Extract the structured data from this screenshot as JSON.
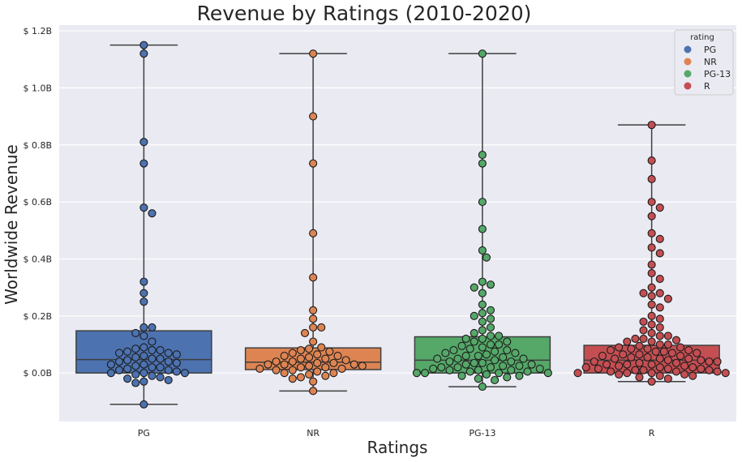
{
  "chart_data": {
    "type": "box",
    "title": "Revenue by Ratings (2010-2020)",
    "xlabel": "Ratings",
    "ylabel": "Worldwide Revenue",
    "ylim": [
      -0.17,
      1.22
    ],
    "yticks": [
      0.0,
      0.2,
      0.4,
      0.6,
      0.8,
      1.0,
      1.2
    ],
    "ytick_labels": [
      "$ 0.0B",
      "$ 0.2B",
      "$ 0.4B",
      "$ 0.6B",
      "$ 0.8B",
      "$ 1.0B",
      "$ 1.2B"
    ],
    "categories": [
      "PG",
      "NR",
      "PG-13",
      "R"
    ],
    "grid": true,
    "legend": {
      "title": "rating",
      "position": "top-right"
    },
    "colors": [
      "#4c72b0",
      "#dd8452",
      "#55a868",
      "#c44e52"
    ],
    "series": [
      {
        "name": "PG",
        "box": {
          "q1": 0.0,
          "median": 0.047,
          "q3": 0.148,
          "whisker_low": -0.11,
          "whisker_high": 1.15
        },
        "points": [
          1.15,
          1.12,
          0.81,
          0.735,
          0.58,
          0.56,
          0.32,
          0.28,
          0.25,
          0.16,
          0.16,
          0.14,
          0.13,
          0.11,
          0.09,
          0.085,
          0.08,
          0.08,
          0.075,
          0.07,
          0.07,
          0.065,
          0.06,
          0.055,
          0.05,
          0.05,
          0.045,
          0.04,
          0.04,
          0.035,
          0.03,
          0.03,
          0.025,
          0.02,
          0.02,
          0.015,
          0.01,
          0.01,
          0.005,
          0.0,
          0.0,
          0.0,
          -0.005,
          -0.01,
          -0.015,
          -0.02,
          -0.025,
          -0.03,
          -0.035,
          -0.11
        ]
      },
      {
        "name": "NR",
        "box": {
          "q1": 0.012,
          "median": 0.038,
          "q3": 0.088,
          "whisker_low": -0.063,
          "whisker_high": 1.12
        },
        "points": [
          1.12,
          0.9,
          0.735,
          0.49,
          0.335,
          0.22,
          0.19,
          0.16,
          0.16,
          0.14,
          0.11,
          0.09,
          0.085,
          0.08,
          0.075,
          0.07,
          0.065,
          0.06,
          0.06,
          0.055,
          0.05,
          0.05,
          0.045,
          0.04,
          0.04,
          0.035,
          0.035,
          0.03,
          0.03,
          0.03,
          0.025,
          0.025,
          0.02,
          0.02,
          0.015,
          0.015,
          0.01,
          0.01,
          0.005,
          0.0,
          0.0,
          -0.005,
          -0.01,
          -0.015,
          -0.02,
          -0.03,
          -0.063
        ]
      },
      {
        "name": "PG-13",
        "box": {
          "q1": 0.0,
          "median": 0.045,
          "q3": 0.127,
          "whisker_low": -0.048,
          "whisker_high": 1.12
        },
        "points": [
          1.12,
          0.765,
          0.735,
          0.6,
          0.505,
          0.43,
          0.405,
          0.32,
          0.31,
          0.3,
          0.28,
          0.24,
          0.22,
          0.21,
          0.2,
          0.19,
          0.18,
          0.16,
          0.15,
          0.14,
          0.13,
          0.13,
          0.12,
          0.12,
          0.11,
          0.11,
          0.1,
          0.1,
          0.095,
          0.09,
          0.085,
          0.08,
          0.08,
          0.075,
          0.07,
          0.07,
          0.065,
          0.06,
          0.06,
          0.055,
          0.05,
          0.05,
          0.05,
          0.045,
          0.04,
          0.04,
          0.035,
          0.035,
          0.03,
          0.03,
          0.025,
          0.025,
          0.02,
          0.02,
          0.02,
          0.015,
          0.015,
          0.01,
          0.01,
          0.01,
          0.005,
          0.005,
          0.0,
          0.0,
          0.0,
          0.0,
          -0.005,
          -0.01,
          -0.01,
          -0.015,
          -0.02,
          -0.025,
          -0.048
        ]
      },
      {
        "name": "R",
        "box": {
          "q1": 0.0,
          "median": 0.045,
          "q3": 0.097,
          "whisker_low": -0.03,
          "whisker_high": 0.87
        },
        "points": [
          0.87,
          0.745,
          0.68,
          0.6,
          0.58,
          0.55,
          0.49,
          0.47,
          0.44,
          0.42,
          0.38,
          0.35,
          0.33,
          0.3,
          0.28,
          0.28,
          0.27,
          0.26,
          0.24,
          0.23,
          0.2,
          0.19,
          0.18,
          0.17,
          0.16,
          0.15,
          0.14,
          0.13,
          0.13,
          0.12,
          0.12,
          0.115,
          0.11,
          0.11,
          0.1,
          0.1,
          0.095,
          0.09,
          0.09,
          0.085,
          0.085,
          0.08,
          0.08,
          0.075,
          0.075,
          0.07,
          0.07,
          0.065,
          0.065,
          0.06,
          0.06,
          0.055,
          0.055,
          0.05,
          0.05,
          0.05,
          0.045,
          0.045,
          0.04,
          0.04,
          0.04,
          0.035,
          0.035,
          0.03,
          0.03,
          0.03,
          0.025,
          0.025,
          0.02,
          0.02,
          0.02,
          0.015,
          0.015,
          0.015,
          0.01,
          0.01,
          0.01,
          0.005,
          0.005,
          0.005,
          0.0,
          0.0,
          0.0,
          0.0,
          -0.005,
          -0.005,
          -0.01,
          -0.01,
          -0.015,
          -0.02,
          -0.03
        ]
      }
    ]
  }
}
